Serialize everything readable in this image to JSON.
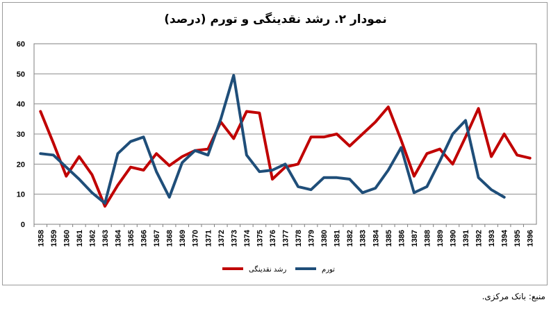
{
  "chart_data": {
    "type": "line",
    "title": "نمودار ۲. رشد نقدینگی و تورم (درصد)",
    "xlabel": "",
    "ylabel": "",
    "ylim": [
      0,
      60
    ],
    "yticks": [
      0,
      10,
      20,
      30,
      40,
      50,
      60
    ],
    "grid": true,
    "legend": "bottom-center",
    "categories": [
      "1358",
      "1359",
      "1360",
      "1361",
      "1362",
      "1363",
      "1364",
      "1365",
      "1366",
      "1367",
      "1368",
      "1369",
      "1370",
      "1371",
      "1372",
      "1373",
      "1374",
      "1375",
      "1376",
      "1377",
      "1378",
      "1379",
      "1380",
      "1381",
      "1382",
      "1383",
      "1384",
      "1385",
      "1386",
      "1387",
      "1388",
      "1389",
      "1390",
      "1391",
      "1392",
      "1393",
      "1394",
      "1395",
      "1396"
    ],
    "series": [
      {
        "name": "رشد نقدینگی",
        "color": "#c00000",
        "values": [
          37.5,
          27,
          16,
          22.5,
          16.5,
          6,
          13,
          19,
          18,
          23.5,
          19.5,
          22.5,
          24.5,
          25,
          34,
          28.5,
          37.5,
          37,
          15,
          19,
          20,
          29,
          29,
          30,
          26,
          30,
          34,
          39,
          28,
          16,
          23.5,
          25,
          20,
          29,
          38.5,
          22.5,
          30,
          23,
          22
        ]
      },
      {
        "name": "تورم",
        "color": "#1f4e79",
        "values": [
          23.5,
          23,
          19,
          15,
          10.5,
          7,
          23.5,
          27.5,
          29,
          17.5,
          9,
          20.5,
          24.5,
          23,
          35,
          49.5,
          23,
          17.5,
          18,
          20,
          12.5,
          11.5,
          15.5,
          15.5,
          15,
          10.5,
          12,
          18,
          25.5,
          10.5,
          12.5,
          21,
          30,
          34.5,
          15.5,
          11.5,
          9,
          null,
          null
        ]
      }
    ]
  },
  "source": "منبع: بانک مرکزی."
}
